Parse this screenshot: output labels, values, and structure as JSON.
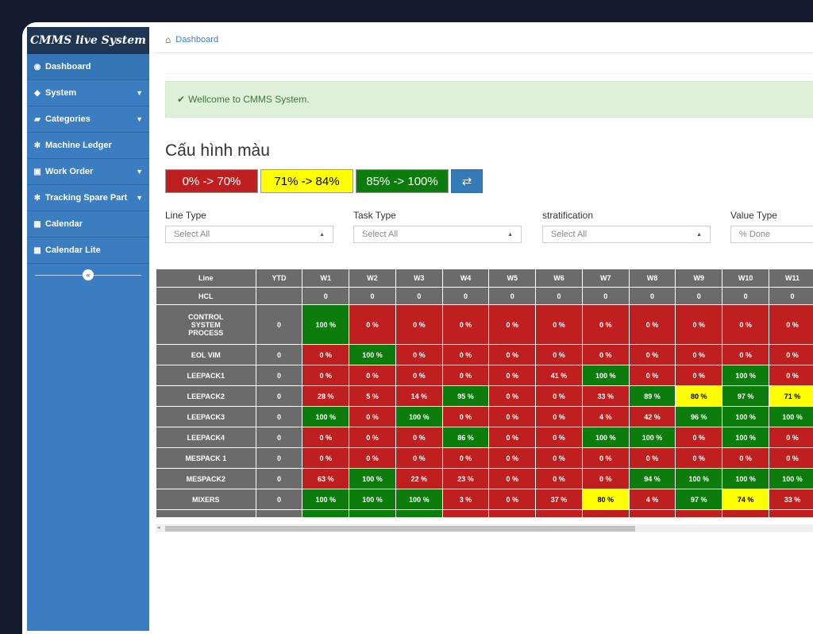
{
  "sidebar": {
    "brand": "CMMS live System",
    "items": [
      {
        "label": "Dashboard",
        "icon": "dashboard-icon",
        "chevron": false
      },
      {
        "label": "System",
        "icon": "cube-icon",
        "chevron": true
      },
      {
        "label": "Categories",
        "icon": "book-icon",
        "chevron": true
      },
      {
        "label": "Machine Ledger",
        "icon": "cogs-icon",
        "chevron": false
      },
      {
        "label": "Work Order",
        "icon": "calendar-check-icon",
        "chevron": true
      },
      {
        "label": "Tracking Spare Part",
        "icon": "cogs-icon",
        "chevron": true
      },
      {
        "label": "Calendar",
        "icon": "calendar-icon",
        "chevron": false
      },
      {
        "label": "Calendar Lite",
        "icon": "calendar-icon",
        "chevron": false
      }
    ]
  },
  "breadcrumb": {
    "label": "Dashboard"
  },
  "alert": {
    "message": "Wellcome to CMMS System."
  },
  "section": {
    "title": "Cấu hình màu"
  },
  "legend": {
    "red": "0% -> 70%",
    "yellow": "71% -> 84%",
    "green": "85% -> 100%",
    "swap_icon": "exchange-icon"
  },
  "filters": [
    {
      "label": "Line Type",
      "value": "Select All"
    },
    {
      "label": "Task Type",
      "value": "Select All"
    },
    {
      "label": "stratification",
      "value": "Select All"
    },
    {
      "label": "Value Type",
      "value": "% Done"
    }
  ],
  "colors": {
    "red": "#c01f1f",
    "yellow": "#ffff00",
    "green": "#0c7d0c",
    "header": "#6b6b6b",
    "sidebar": "#3a7dc0"
  },
  "table": {
    "headers": [
      "Line",
      "YTD",
      "W1",
      "W2",
      "W3",
      "W4",
      "W5",
      "W6",
      "W7",
      "W8",
      "W9",
      "W10",
      "W11"
    ],
    "rows": [
      {
        "line": "HCL",
        "ytd": "",
        "header_style": true,
        "cells": [
          [
            "0",
            "h"
          ],
          [
            "0",
            "h"
          ],
          [
            "0",
            "h"
          ],
          [
            "0",
            "h"
          ],
          [
            "0",
            "h"
          ],
          [
            "0",
            "h"
          ],
          [
            "0",
            "h"
          ],
          [
            "0",
            "h"
          ],
          [
            "0",
            "h"
          ],
          [
            "0",
            "h"
          ],
          [
            "0",
            "h"
          ]
        ]
      },
      {
        "line": "CONTROL SYSTEM PROCESS",
        "ytd": "0",
        "cells": [
          [
            "100 %",
            "g"
          ],
          [
            "0 %",
            "r"
          ],
          [
            "0 %",
            "r"
          ],
          [
            "0 %",
            "r"
          ],
          [
            "0 %",
            "r"
          ],
          [
            "0 %",
            "r"
          ],
          [
            "0 %",
            "r"
          ],
          [
            "0 %",
            "r"
          ],
          [
            "0 %",
            "r"
          ],
          [
            "0 %",
            "r"
          ],
          [
            "0 %",
            "r"
          ]
        ]
      },
      {
        "line": "EOL VIM",
        "ytd": "0",
        "cells": [
          [
            "0 %",
            "r"
          ],
          [
            "100 %",
            "g"
          ],
          [
            "0 %",
            "r"
          ],
          [
            "0 %",
            "r"
          ],
          [
            "0 %",
            "r"
          ],
          [
            "0 %",
            "r"
          ],
          [
            "0 %",
            "r"
          ],
          [
            "0 %",
            "r"
          ],
          [
            "0 %",
            "r"
          ],
          [
            "0 %",
            "r"
          ],
          [
            "0 %",
            "r"
          ]
        ]
      },
      {
        "line": "LEEPACK1",
        "ytd": "0",
        "cells": [
          [
            "0 %",
            "r"
          ],
          [
            "0 %",
            "r"
          ],
          [
            "0 %",
            "r"
          ],
          [
            "0 %",
            "r"
          ],
          [
            "0 %",
            "r"
          ],
          [
            "41 %",
            "r"
          ],
          [
            "100 %",
            "g"
          ],
          [
            "0 %",
            "r"
          ],
          [
            "0 %",
            "r"
          ],
          [
            "100 %",
            "g"
          ],
          [
            "0 %",
            "r"
          ]
        ]
      },
      {
        "line": "LEEPACK2",
        "ytd": "0",
        "cells": [
          [
            "28 %",
            "r"
          ],
          [
            "5 %",
            "r"
          ],
          [
            "14 %",
            "r"
          ],
          [
            "95 %",
            "g"
          ],
          [
            "0 %",
            "r"
          ],
          [
            "0 %",
            "r"
          ],
          [
            "33 %",
            "r"
          ],
          [
            "89 %",
            "g"
          ],
          [
            "80 %",
            "y"
          ],
          [
            "97 %",
            "g"
          ],
          [
            "71 %",
            "y"
          ]
        ]
      },
      {
        "line": "LEEPACK3",
        "ytd": "0",
        "cells": [
          [
            "100 %",
            "g"
          ],
          [
            "0 %",
            "r"
          ],
          [
            "100 %",
            "g"
          ],
          [
            "0 %",
            "r"
          ],
          [
            "0 %",
            "r"
          ],
          [
            "0 %",
            "r"
          ],
          [
            "4 %",
            "r"
          ],
          [
            "42 %",
            "r"
          ],
          [
            "96 %",
            "g"
          ],
          [
            "100 %",
            "g"
          ],
          [
            "100 %",
            "g"
          ]
        ]
      },
      {
        "line": "LEEPACK4",
        "ytd": "0",
        "cells": [
          [
            "0 %",
            "r"
          ],
          [
            "0 %",
            "r"
          ],
          [
            "0 %",
            "r"
          ],
          [
            "86 %",
            "g"
          ],
          [
            "0 %",
            "r"
          ],
          [
            "0 %",
            "r"
          ],
          [
            "100 %",
            "g"
          ],
          [
            "100 %",
            "g"
          ],
          [
            "0 %",
            "r"
          ],
          [
            "100 %",
            "g"
          ],
          [
            "0 %",
            "r"
          ]
        ]
      },
      {
        "line": "MESPACK 1",
        "ytd": "0",
        "cells": [
          [
            "0 %",
            "r"
          ],
          [
            "0 %",
            "r"
          ],
          [
            "0 %",
            "r"
          ],
          [
            "0 %",
            "r"
          ],
          [
            "0 %",
            "r"
          ],
          [
            "0 %",
            "r"
          ],
          [
            "0 %",
            "r"
          ],
          [
            "0 %",
            "r"
          ],
          [
            "0 %",
            "r"
          ],
          [
            "0 %",
            "r"
          ],
          [
            "0 %",
            "r"
          ]
        ]
      },
      {
        "line": "MESPACK2",
        "ytd": "0",
        "cells": [
          [
            "63 %",
            "r"
          ],
          [
            "100 %",
            "g"
          ],
          [
            "22 %",
            "r"
          ],
          [
            "23 %",
            "r"
          ],
          [
            "0 %",
            "r"
          ],
          [
            "0 %",
            "r"
          ],
          [
            "0 %",
            "r"
          ],
          [
            "94 %",
            "g"
          ],
          [
            "100 %",
            "g"
          ],
          [
            "100 %",
            "g"
          ],
          [
            "100 %",
            "g"
          ]
        ]
      },
      {
        "line": "MIXERS",
        "ytd": "0",
        "cells": [
          [
            "100 %",
            "g"
          ],
          [
            "100 %",
            "g"
          ],
          [
            "100 %",
            "g"
          ],
          [
            "3 %",
            "r"
          ],
          [
            "0 %",
            "r"
          ],
          [
            "37 %",
            "r"
          ],
          [
            "80 %",
            "y"
          ],
          [
            "4 %",
            "r"
          ],
          [
            "97 %",
            "g"
          ],
          [
            "74 %",
            "y"
          ],
          [
            "33 %",
            "r"
          ]
        ]
      },
      {
        "line": "",
        "ytd": "",
        "cells": [
          [
            "",
            "g"
          ],
          [
            "",
            "g"
          ],
          [
            "",
            "g"
          ],
          [
            "",
            "r"
          ],
          [
            "",
            "r"
          ],
          [
            "",
            "r"
          ],
          [
            "",
            "r"
          ],
          [
            "",
            "r"
          ],
          [
            "",
            "r"
          ],
          [
            "",
            "r"
          ],
          [
            "",
            "r"
          ]
        ]
      }
    ]
  }
}
